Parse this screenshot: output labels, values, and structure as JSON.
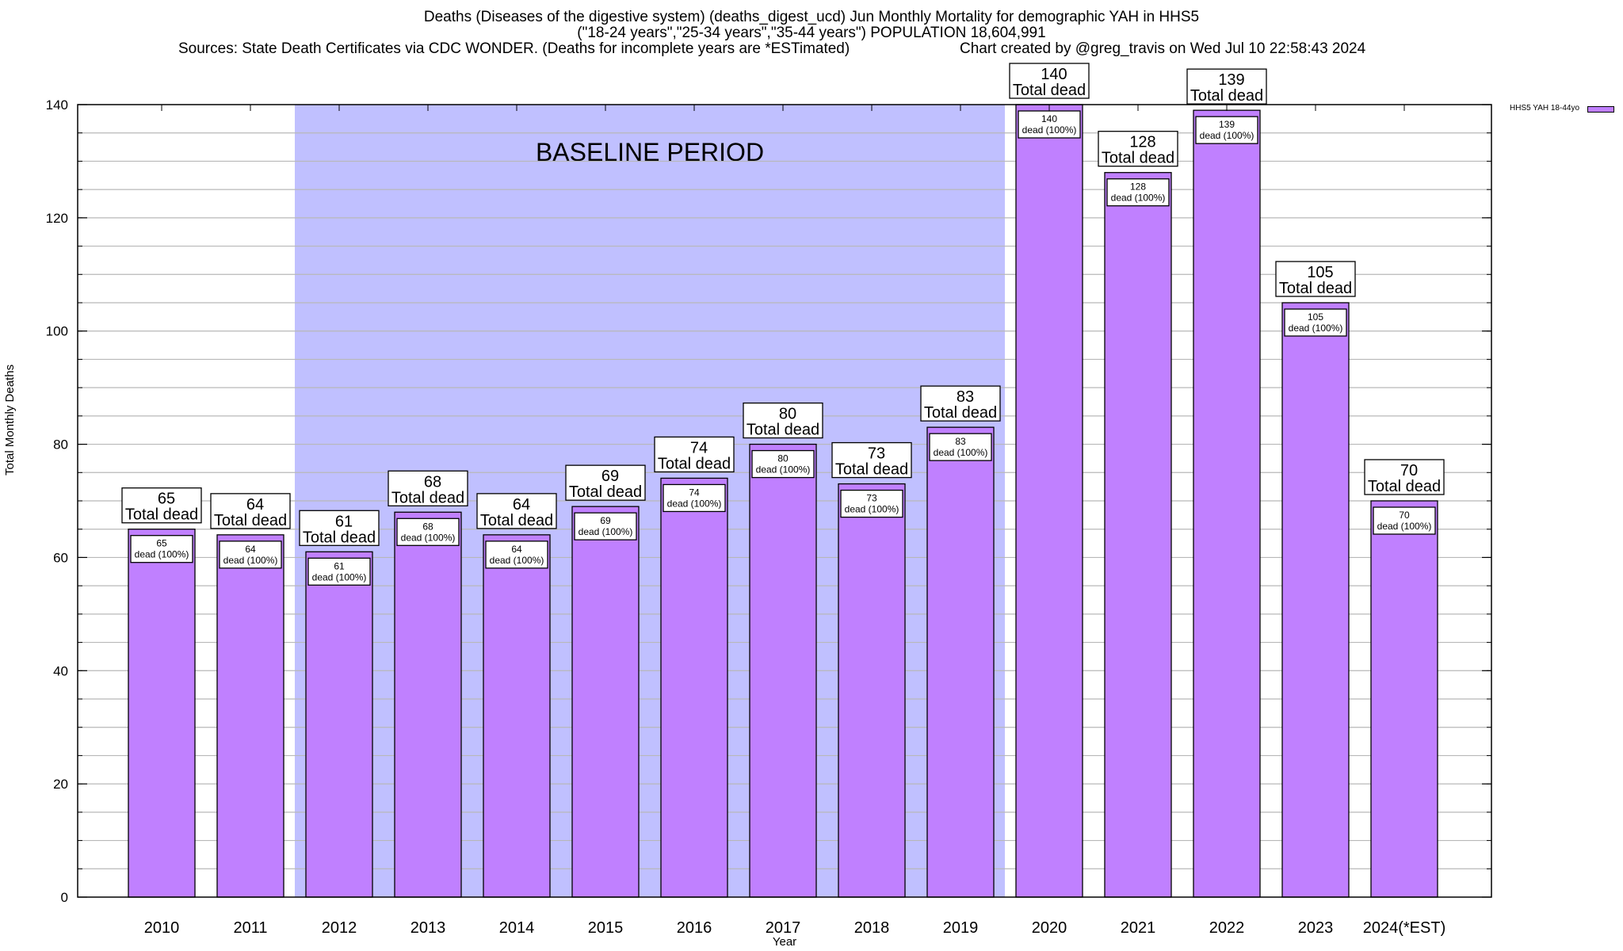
{
  "header": {
    "title_line1": "Deaths (Diseases of the digestive system) (deaths_digest_ucd) Jun Monthly Mortality for demographic YAH in HHS5",
    "title_line2": "(\"18-24 years\",\"25-34 years\",\"35-44 years\") POPULATION 18,604,991",
    "title_line3_left": "Sources: State Death Certificates via CDC WONDER. (Deaths for incomplete years are *ESTimated)",
    "title_line3_right": "Chart created by @greg_travis on Wed Jul 10 22:58:43 2024"
  },
  "chart_data": {
    "type": "bar",
    "title": "Deaths (Diseases of the digestive system) (deaths_digest_ucd) Jun Monthly Mortality for demographic YAH in HHS5",
    "xlabel": "Year",
    "ylabel": "Total Monthly Deaths",
    "ylim": [
      0,
      140
    ],
    "yticks": [
      0,
      20,
      40,
      60,
      80,
      100,
      120,
      140
    ],
    "minor_grid_step": 5,
    "grid": true,
    "legend": {
      "placement": "top-right",
      "entries": [
        {
          "name": "HHS5 YAH 18-44yo",
          "color": "#c080ff"
        }
      ]
    },
    "categories": [
      "2010",
      "2011",
      "2012",
      "2013",
      "2014",
      "2015",
      "2016",
      "2017",
      "2018",
      "2019",
      "2020",
      "2021",
      "2022",
      "2023",
      "2024(*EST)"
    ],
    "series": [
      {
        "name": "HHS5 YAH 18-44yo",
        "color": "#c080ff",
        "values": [
          65,
          64,
          61,
          68,
          64,
          69,
          74,
          80,
          73,
          83,
          140,
          128,
          139,
          105,
          70
        ]
      }
    ],
    "total_label_suffix": "Total dead",
    "inner_label_suffix": "dead (100%)",
    "baseline_period": {
      "label": "BASELINE PERIOD",
      "start_category": "2012",
      "end_category": "2019",
      "color": "#c0c0ff"
    }
  }
}
